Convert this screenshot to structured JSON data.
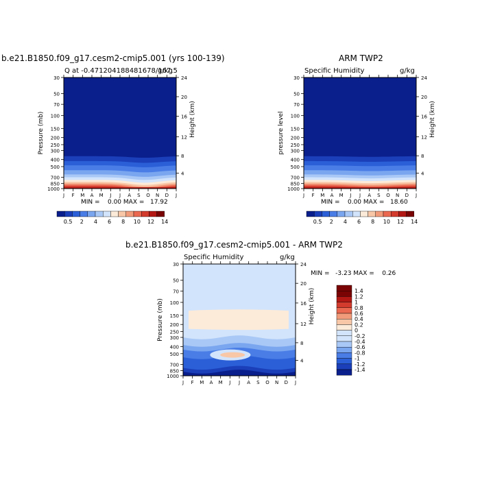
{
  "colors": {
    "humidity_palette": [
      "#0a1e8c",
      "#1a3fb8",
      "#2a5fd8",
      "#4a7ee6",
      "#7aa6f0",
      "#a9c8f6",
      "#d2e4fb",
      "#fdebd9",
      "#f8c7a8",
      "#f29b7b",
      "#e9684f",
      "#d33b2c",
      "#b41814",
      "#7a0403"
    ],
    "diff_palette": [
      "#0a1e8c",
      "#1a3fb8",
      "#2a5fd8",
      "#4a7ee6",
      "#7aa6f0",
      "#a9c8f6",
      "#d2e4fb",
      "#fdebd9",
      "#f8c7a8",
      "#f29b7b",
      "#e9684f",
      "#d33b2c",
      "#b41814",
      "#7a0403"
    ]
  },
  "panel1": {
    "title": "b.e21.B1850.f09_g17.cesm2-cmip5.001 (yrs 100-139)",
    "subtitle_left": "Q at -0.471204188481678/167.5",
    "subtitle_right": "g/kg",
    "minmax": "MIN =    0.00 MAX =   17.92"
  },
  "panel2": {
    "title": "ARM TWP2",
    "subtitle_left": "Specific Humidity",
    "subtitle_right": "g/kg",
    "minmax": "MIN =    0.00 MAX =   18.60"
  },
  "panel3": {
    "title": "b.e21.B1850.f09_g17.cesm2-cmip5.001 - ARM TWP2",
    "subtitle_left": "Specific Humidity",
    "subtitle_right": "g/kg",
    "minmax": "MIN =   -3.23 MAX =    0.26"
  },
  "chart_data": [
    {
      "type": "heatmap",
      "title": "b.e21.B1850.f09_g17.cesm2-cmip5.001 (yrs 100-139)",
      "ylabel": "Pressure (mb)",
      "ylabel_right": "Height (km)",
      "x_ticks": [
        "J",
        "F",
        "M",
        "A",
        "M",
        "J",
        "J",
        "A",
        "S",
        "O",
        "N",
        "D",
        "J"
      ],
      "y_ticks": [
        "30",
        "50",
        "70",
        "100",
        "150",
        "200",
        "250",
        "300",
        "400",
        "500",
        "700",
        "850",
        "1000"
      ],
      "y_ticks_right": [
        "24",
        "20",
        "16",
        "12",
        "8",
        "4"
      ],
      "colorbar_labels": [
        "0.5",
        "2",
        "4",
        "6",
        "8",
        "10",
        "12",
        "14"
      ],
      "summary": {
        "min": 0.0,
        "max": 17.92
      }
    },
    {
      "type": "heatmap",
      "title": "ARM TWP2",
      "ylabel": "pressure level",
      "ylabel_right": "Height (km)",
      "x_ticks": [
        "J",
        "F",
        "M",
        "A",
        "M",
        "J",
        "J",
        "A",
        "S",
        "O",
        "N",
        "D",
        "J"
      ],
      "y_ticks": [
        "30",
        "50",
        "70",
        "100",
        "150",
        "200",
        "250",
        "300",
        "400",
        "500",
        "700",
        "850",
        "1000"
      ],
      "y_ticks_right": [
        "24",
        "20",
        "16",
        "12",
        "8",
        "4"
      ],
      "colorbar_labels": [
        "0.5",
        "2",
        "4",
        "6",
        "8",
        "10",
        "12",
        "14"
      ],
      "summary": {
        "min": 0.0,
        "max": 18.6
      }
    },
    {
      "type": "heatmap",
      "title": "b.e21.B1850.f09_g17.cesm2-cmip5.001 - ARM TWP2",
      "ylabel": "Pressure (mb)",
      "ylabel_right": "Height (km)",
      "x_ticks": [
        "J",
        "F",
        "M",
        "A",
        "M",
        "J",
        "J",
        "A",
        "S",
        "O",
        "N",
        "D",
        "J"
      ],
      "y_ticks": [
        "30",
        "50",
        "70",
        "100",
        "150",
        "200",
        "250",
        "300",
        "400",
        "500",
        "700",
        "850",
        "1000"
      ],
      "y_ticks_right": [
        "24",
        "20",
        "16",
        "12",
        "8",
        "4"
      ],
      "colorbar_labels": [
        "1.4",
        "1.2",
        "1",
        "0.8",
        "0.6",
        "0.4",
        "0.2",
        "0",
        "-0.2",
        "-0.4",
        "-0.6",
        "-0.8",
        "-1",
        "-1.2",
        "-1.4"
      ],
      "summary": {
        "min": -3.23,
        "max": 0.26
      }
    }
  ]
}
